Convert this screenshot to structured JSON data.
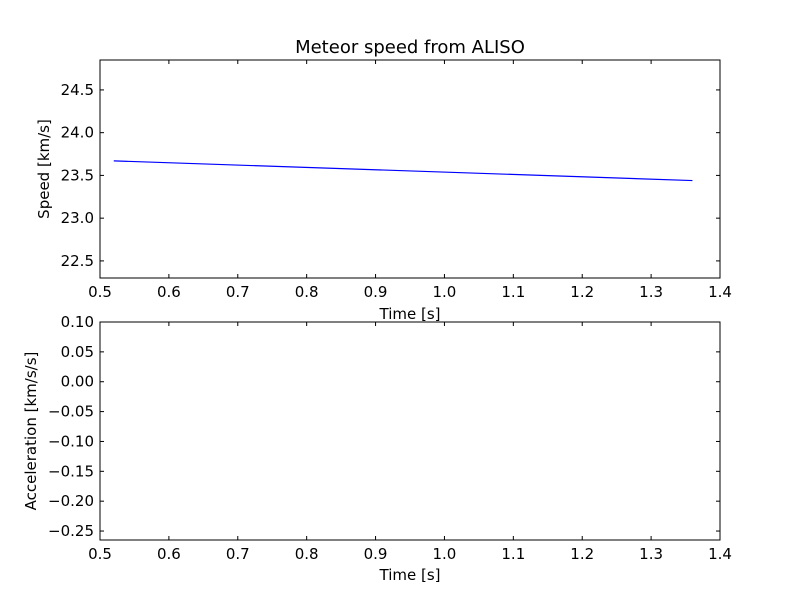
{
  "chart_data": [
    {
      "type": "line",
      "title": "Meteor speed from  ALISO",
      "xlabel": "Time [s]",
      "ylabel": "Speed [km/s]",
      "xlim": [
        0.5,
        1.4
      ],
      "ylim": [
        22.3,
        24.85
      ],
      "xticks": [
        0.5,
        0.6,
        0.7,
        0.8,
        0.9,
        1.0,
        1.1,
        1.2,
        1.3,
        1.4
      ],
      "xtick_labels": [
        "0.5",
        "0.6",
        "0.7",
        "0.8",
        "0.9",
        "1.0",
        "1.1",
        "1.2",
        "1.3",
        "1.4"
      ],
      "yticks": [
        22.5,
        23.0,
        23.5,
        24.0,
        24.5
      ],
      "ytick_labels": [
        "22.5",
        "23.0",
        "23.5",
        "24.0",
        "24.5"
      ],
      "grid": false,
      "series": [
        {
          "color": "#0000ff",
          "x": [
            0.52,
            1.36
          ],
          "y": [
            23.67,
            23.44
          ]
        }
      ]
    },
    {
      "type": "line",
      "title": "",
      "xlabel": "Time [s]",
      "ylabel": "Acceleration [km/s/s]",
      "xlim": [
        0.5,
        1.4
      ],
      "ylim": [
        -0.265,
        0.1
      ],
      "xticks": [
        0.5,
        0.6,
        0.7,
        0.8,
        0.9,
        1.0,
        1.1,
        1.2,
        1.3,
        1.4
      ],
      "xtick_labels": [
        "0.5",
        "0.6",
        "0.7",
        "0.8",
        "0.9",
        "1.0",
        "1.1",
        "1.2",
        "1.3",
        "1.4"
      ],
      "yticks": [
        -0.25,
        -0.2,
        -0.15,
        -0.1,
        -0.05,
        0.0,
        0.05,
        0.1
      ],
      "ytick_labels": [
        "−0.25",
        "−0.20",
        "−0.15",
        "−0.10",
        "−0.05",
        "0.00",
        "0.05",
        "0.10"
      ],
      "grid": false,
      "series": []
    }
  ]
}
